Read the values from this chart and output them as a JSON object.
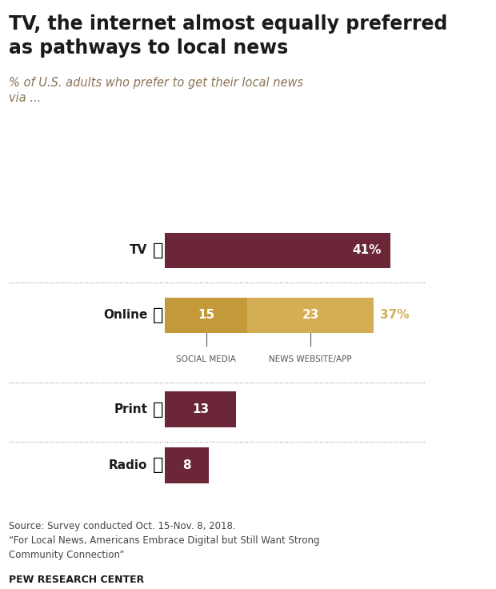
{
  "title": "TV, the internet almost equally preferred\nas pathways to local news",
  "subtitle": "% of U.S. adults who prefer to get their local news\nvia ...",
  "tv_value": 41,
  "online_social": 15,
  "online_news": 23,
  "online_total": 37,
  "print_value": 13,
  "radio_value": 8,
  "color_dark_red": "#6B2737",
  "color_gold_dark": "#C4993A",
  "color_gold_light": "#D4AE54",
  "color_dotted_line": "#999999",
  "source_text": "Source: Survey conducted Oct. 15-Nov. 8, 2018.\n“For Local News, Americans Embrace Digital but Still Want Strong\nCommunity Connection”",
  "footer_text": "PEW RESEARCH CENTER",
  "bg_color": "#FFFFFF"
}
